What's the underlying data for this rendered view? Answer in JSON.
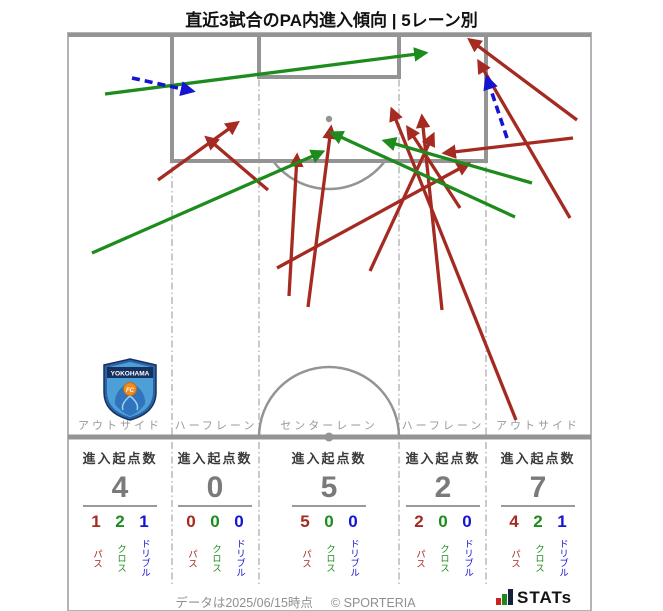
{
  "title": "直近3試合のPA内進入傾向 | 5レーン別",
  "colors": {
    "pass": "#a52a21",
    "cross": "#1d8c1d",
    "dribble": "#1414d2",
    "pitch_line": "#949494",
    "border_line": "#b3b3b3",
    "brand_bar1": "#cc2222",
    "brand_bar2": "#1d8c1d",
    "brand_bar3": "#16213d"
  },
  "lanes": [
    {
      "label": "アウトサイド",
      "stat_label": "進入起点数",
      "total": "4",
      "pass": "1",
      "cross": "2",
      "dribble": "1"
    },
    {
      "label": "ハーフレーン",
      "stat_label": "進入起点数",
      "total": "0",
      "pass": "0",
      "cross": "0",
      "dribble": "0"
    },
    {
      "label": "センターレーン",
      "stat_label": "進入起点数",
      "total": "5",
      "pass": "5",
      "cross": "0",
      "dribble": "0"
    },
    {
      "label": "ハーフレーン",
      "stat_label": "進入起点数",
      "total": "2",
      "pass": "2",
      "cross": "0",
      "dribble": "0"
    },
    {
      "label": "アウトサイド",
      "stat_label": "進入起点数",
      "total": "7",
      "pass": "4",
      "cross": "2",
      "dribble": "1"
    }
  ],
  "legend": {
    "pass": "パス",
    "cross": "クロス",
    "dribble": "ドリブル"
  },
  "footer": {
    "data_note": "データは2025/06/15時点",
    "copyright": "© SPORTERIA",
    "brand": "STATs"
  },
  "team_logo": {
    "name": "YOKOHAMA",
    "sub": "FC"
  },
  "chart_data": {
    "type": "arrow-pitch",
    "title": "直近3試合のPA内進入傾向 | 5レーン別",
    "lane_names": [
      "アウトサイド",
      "ハーフレーン",
      "センターレーン",
      "ハーフレーン",
      "アウトサイド"
    ],
    "lane_totals": [
      4,
      0,
      5,
      2,
      7
    ],
    "lane_breakdown": {
      "pass": [
        1,
        0,
        5,
        2,
        4
      ],
      "cross": [
        2,
        0,
        0,
        0,
        2
      ],
      "dribble": [
        1,
        0,
        0,
        0,
        1
      ]
    },
    "arrows": [
      {
        "kind": "pass",
        "from": [
          158,
          180
        ],
        "to": [
          237,
          123
        ]
      },
      {
        "kind": "pass",
        "from": [
          268,
          190
        ],
        "to": [
          207,
          138
        ]
      },
      {
        "kind": "pass",
        "from": [
          289,
          296
        ],
        "to": [
          297,
          156
        ]
      },
      {
        "kind": "pass",
        "from": [
          308,
          307
        ],
        "to": [
          331,
          128
        ]
      },
      {
        "kind": "pass",
        "from": [
          370,
          271
        ],
        "to": [
          433,
          135
        ]
      },
      {
        "kind": "pass",
        "from": [
          277,
          268
        ],
        "to": [
          468,
          164
        ]
      },
      {
        "kind": "pass",
        "from": [
          460,
          208
        ],
        "to": [
          408,
          128
        ]
      },
      {
        "kind": "pass",
        "from": [
          442,
          310
        ],
        "to": [
          422,
          117
        ]
      },
      {
        "kind": "pass",
        "from": [
          577,
          120
        ],
        "to": [
          470,
          40
        ]
      },
      {
        "kind": "pass",
        "from": [
          570,
          218
        ],
        "to": [
          479,
          62
        ]
      },
      {
        "kind": "pass",
        "from": [
          573,
          138
        ],
        "to": [
          445,
          153
        ]
      },
      {
        "kind": "pass",
        "from": [
          516,
          420
        ],
        "to": [
          392,
          110
        ]
      },
      {
        "kind": "cross",
        "from": [
          105,
          94
        ],
        "to": [
          425,
          53
        ]
      },
      {
        "kind": "cross",
        "from": [
          92,
          253
        ],
        "to": [
          322,
          152
        ]
      },
      {
        "kind": "cross",
        "from": [
          532,
          183
        ],
        "to": [
          385,
          141
        ]
      },
      {
        "kind": "cross",
        "from": [
          515,
          217
        ],
        "to": [
          332,
          133
        ]
      },
      {
        "kind": "dribble",
        "from": [
          132,
          78
        ],
        "to": [
          192,
          91
        ]
      },
      {
        "kind": "dribble",
        "from": [
          507,
          138
        ],
        "to": [
          487,
          78
        ]
      }
    ]
  }
}
